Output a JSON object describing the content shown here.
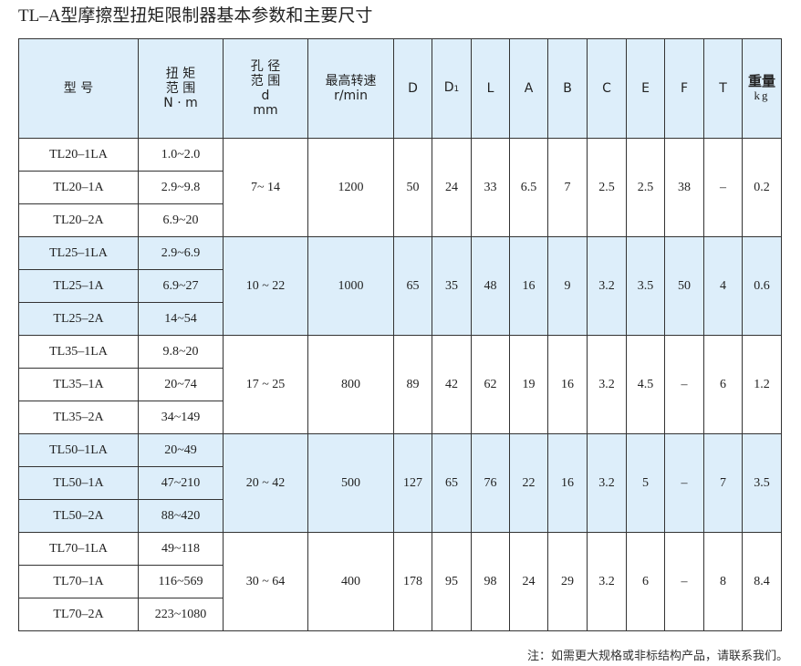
{
  "title": "TL–A型摩擦型扭矩限制器基本参数和主要尺寸",
  "header": {
    "model": "型 号",
    "torque": [
      "扭 矩",
      "范 围",
      "N · m"
    ],
    "bore": [
      "孔 径",
      "范 围",
      "d",
      "mm"
    ],
    "speed": [
      "最高转速",
      "r/min"
    ],
    "D": "D",
    "D1": "D",
    "D1_sub": "1",
    "L": "L",
    "A": "A",
    "B": "B",
    "C": "C",
    "E": "E",
    "F": "F",
    "T": "T",
    "weight": "重量",
    "weight_unit": "kg"
  },
  "groups": [
    {
      "rows": [
        [
          "TL20–1LA",
          "1.0~2.0"
        ],
        [
          "TL20–1A",
          "2.9~9.8"
        ],
        [
          "TL20–2A",
          "6.9~20"
        ]
      ],
      "bore": "7~ 14",
      "speed": "1200",
      "D": "50",
      "D1": "24",
      "L": "33",
      "A": "6.5",
      "B": "7",
      "C": "2.5",
      "E": "2.5",
      "F": "38",
      "T": "–",
      "weight": "0.2"
    },
    {
      "rows": [
        [
          "TL25–1LA",
          "2.9~6.9"
        ],
        [
          "TL25–1A",
          "6.9~27"
        ],
        [
          "TL25–2A",
          "14~54"
        ]
      ],
      "bore": "10 ~ 22",
      "speed": "1000",
      "D": "65",
      "D1": "35",
      "L": "48",
      "A": "16",
      "B": "9",
      "C": "3.2",
      "E": "3.5",
      "F": "50",
      "T": "4",
      "weight": "0.6"
    },
    {
      "rows": [
        [
          "TL35–1LA",
          "9.8~20"
        ],
        [
          "TL35–1A",
          "20~74"
        ],
        [
          "TL35–2A",
          "34~149"
        ]
      ],
      "bore": "17 ~ 25",
      "speed": "800",
      "D": "89",
      "D1": "42",
      "L": "62",
      "A": "19",
      "B": "16",
      "C": "3.2",
      "E": "4.5",
      "F": "–",
      "T": "6",
      "weight": "1.2"
    },
    {
      "rows": [
        [
          "TL50–1LA",
          "20~49"
        ],
        [
          "TL50–1A",
          "47~210"
        ],
        [
          "TL50–2A",
          "88~420"
        ]
      ],
      "bore": "20 ~ 42",
      "speed": "500",
      "D": "127",
      "D1": "65",
      "L": "76",
      "A": "22",
      "B": "16",
      "C": "3.2",
      "E": "5",
      "F": "–",
      "T": "7",
      "weight": "3.5"
    },
    {
      "rows": [
        [
          "TL70–1LA",
          "49~118"
        ],
        [
          "TL70–1A",
          "116~569"
        ],
        [
          "TL70–2A",
          "223~1080"
        ]
      ],
      "bore": "30 ~ 64",
      "speed": "400",
      "D": "178",
      "D1": "95",
      "L": "98",
      "A": "24",
      "B": "29",
      "C": "3.2",
      "E": "6",
      "F": "–",
      "T": "8",
      "weight": "8.4"
    }
  ],
  "note": "注：如需更大规格或非标结构产品，请联系我们。"
}
